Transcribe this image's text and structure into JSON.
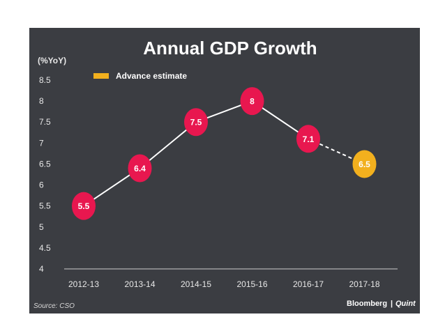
{
  "chart_data": {
    "type": "line",
    "title": "Annual GDP Growth",
    "ylabel": "(%YoY)",
    "categories": [
      "2012-13",
      "2013-14",
      "2014-15",
      "2015-16",
      "2016-17",
      "2017-18"
    ],
    "values": [
      5.5,
      6.4,
      7.5,
      8,
      7.1,
      6.5
    ],
    "value_labels": [
      "5.5",
      "6.4",
      "7.5",
      "8",
      "7.1",
      "6.5"
    ],
    "estimated": [
      false,
      false,
      false,
      false,
      false,
      true
    ],
    "ylim": [
      4,
      8.5
    ],
    "yticks": [
      "4",
      "4.5",
      "5",
      "5.5",
      "6",
      "6.5",
      "7",
      "7.5",
      "8",
      "8.5"
    ],
    "legend": {
      "label": "Advance estimate",
      "position": "top-left"
    },
    "grid": false
  },
  "colors": {
    "panel": "#3b3d42",
    "actual": "#e8174f",
    "estimate": "#f2b01e",
    "line": "#ffffff"
  },
  "source": "Source: CSO",
  "brand": {
    "name": "Bloomberg",
    "separator": "|",
    "suffix": "Quint"
  }
}
